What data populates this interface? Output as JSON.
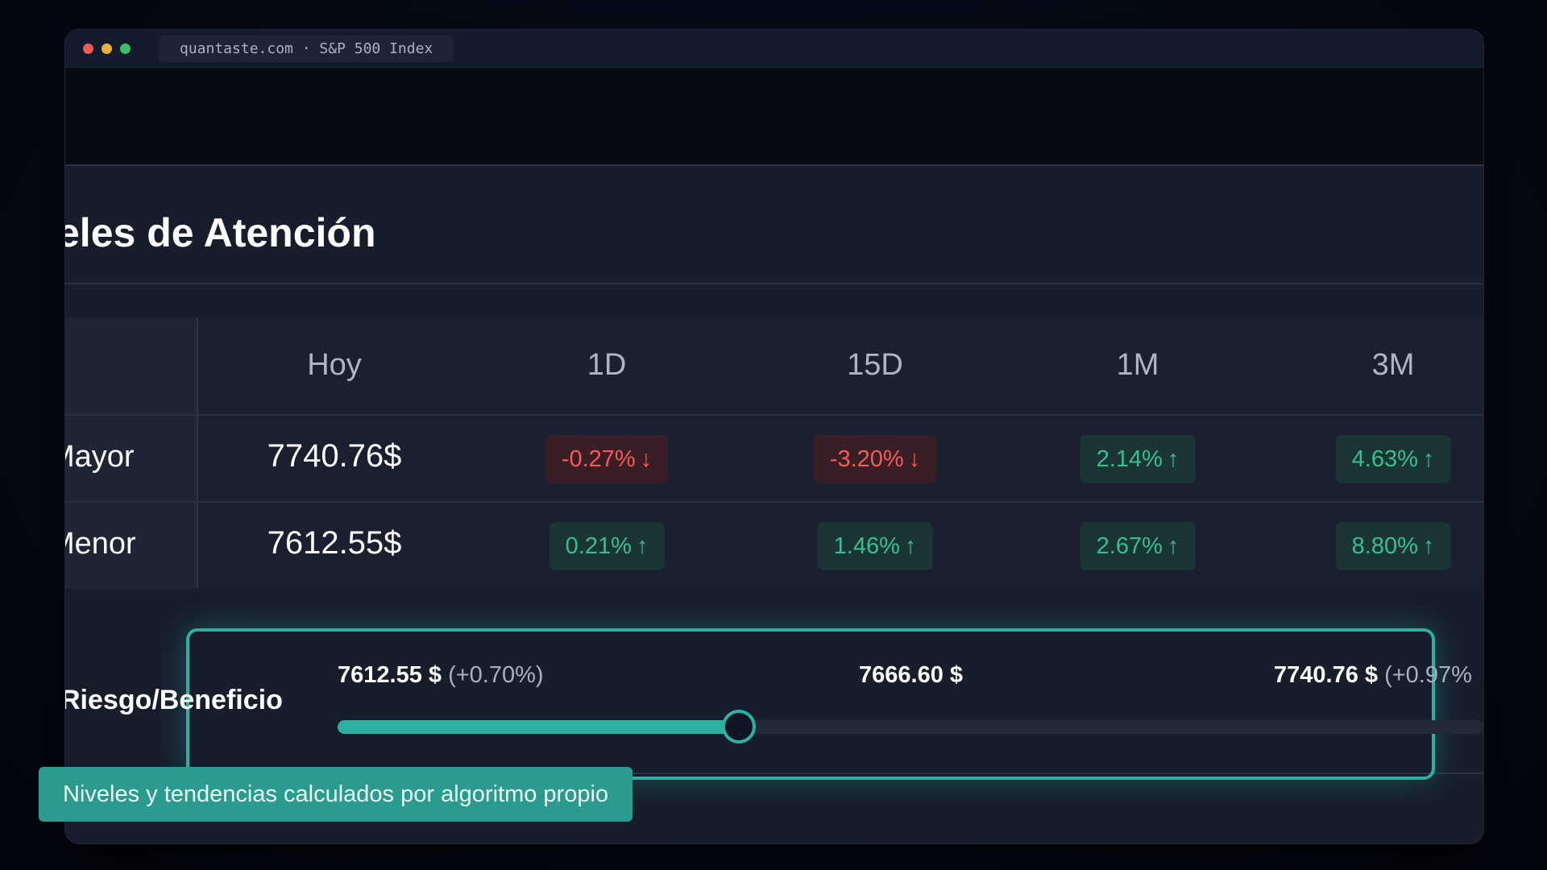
{
  "window": {
    "tab_title": "quantaste.com · S&P 500 Index"
  },
  "section": {
    "heading": "eles de Atención"
  },
  "table": {
    "columns": [
      "Hoy",
      "1D",
      "15D",
      "1M",
      "3M"
    ],
    "rows": [
      {
        "label": "Mayor",
        "price": "7740.76$",
        "changes": [
          {
            "value": "-0.27%",
            "direction": "down"
          },
          {
            "value": "-3.20%",
            "direction": "down"
          },
          {
            "value": "2.14%",
            "direction": "up"
          },
          {
            "value": "4.63%",
            "direction": "up"
          }
        ]
      },
      {
        "label": "Menor",
        "price": "7612.55$",
        "changes": [
          {
            "value": "0.21%",
            "direction": "up"
          },
          {
            "value": "1.46%",
            "direction": "up"
          },
          {
            "value": "2.67%",
            "direction": "up"
          },
          {
            "value": "8.80%",
            "direction": "up"
          }
        ]
      }
    ],
    "arrow_up": "↑",
    "arrow_down": "↓"
  },
  "risk": {
    "label": "Riesgo/Beneficio",
    "low_price": "7612.55 $",
    "low_pct": "(+0.70%)",
    "current_price": "7666.60 $",
    "high_price": "7740.76 $",
    "high_pct": "(+0.97%",
    "slider_fraction": 0.35
  },
  "caption": "Niveles y tendencias calculados por algoritmo propio",
  "colors": {
    "accent": "#2bb1a2",
    "negative": "#f25b5b",
    "positive": "#36c08e"
  }
}
